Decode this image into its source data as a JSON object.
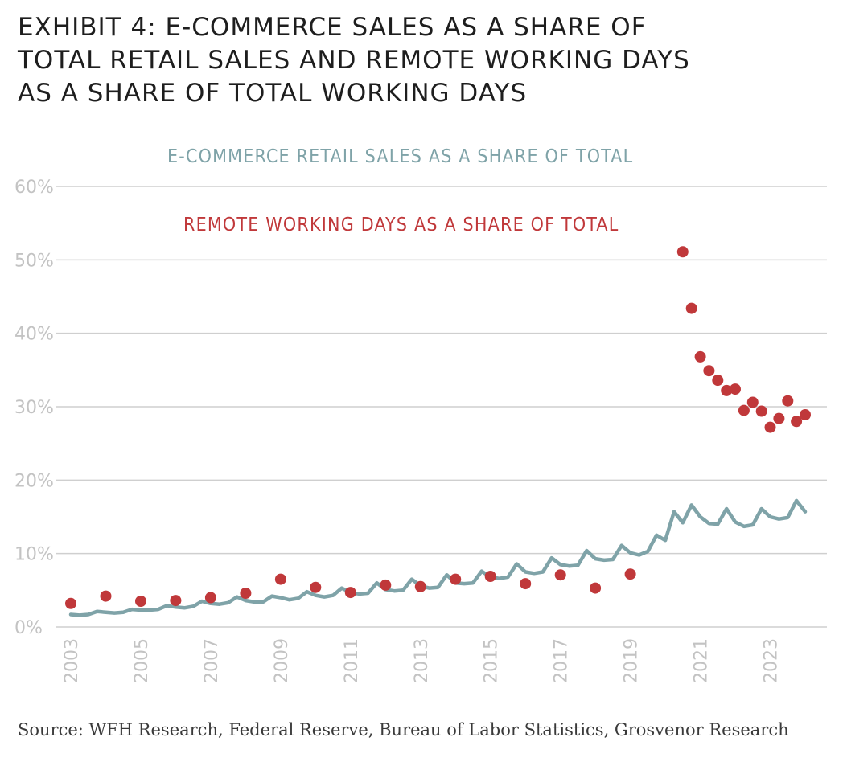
{
  "title_lines": [
    "EXHIBIT 4: E-COMMERCE SALES AS A SHARE OF",
    "TOTAL RETAIL SALES AND REMOTE WORKING DAYS",
    "AS A SHARE OF TOTAL WORKING DAYS"
  ],
  "source": "Source: WFH Research, Federal Reserve, Bureau of Labor Statistics, Grosvenor Research",
  "colors": {
    "ecommerce": "#7fa3a8",
    "remote": "#c0383a",
    "grid": "#cfcfcf",
    "tick": "#c3c3c3"
  },
  "chart_data": {
    "type": "line",
    "ylim": [
      0,
      60
    ],
    "xlim": [
      2003,
      2024.2
    ],
    "y_ticks": [
      0,
      10,
      20,
      30,
      40,
      50,
      60
    ],
    "y_tick_labels": [
      "0%",
      "10%",
      "20%",
      "30%",
      "40%",
      "50%",
      "60%"
    ],
    "x_tick_labels": [
      "2003",
      "2005",
      "2007",
      "2009",
      "2011",
      "2013",
      "2015",
      "2017",
      "2019",
      "2021",
      "2023"
    ],
    "legend": {
      "ecommerce": "E-COMMERCE RETAIL SALES AS A SHARE OF TOTAL",
      "remote": "REMOTE WORKING DAYS AS A SHARE OF TOTAL"
    },
    "series": [
      {
        "name": "E-COMMERCE RETAIL SALES AS A SHARE OF TOTAL",
        "type": "line",
        "x": [
          2003.0,
          2003.25,
          2003.5,
          2003.75,
          2004.0,
          2004.25,
          2004.5,
          2004.75,
          2005.0,
          2005.25,
          2005.5,
          2005.75,
          2006.0,
          2006.25,
          2006.5,
          2006.75,
          2007.0,
          2007.25,
          2007.5,
          2007.75,
          2008.0,
          2008.25,
          2008.5,
          2008.75,
          2009.0,
          2009.25,
          2009.5,
          2009.75,
          2010.0,
          2010.25,
          2010.5,
          2010.75,
          2011.0,
          2011.25,
          2011.5,
          2011.75,
          2012.0,
          2012.25,
          2012.5,
          2012.75,
          2013.0,
          2013.25,
          2013.5,
          2013.75,
          2014.0,
          2014.25,
          2014.5,
          2014.75,
          2015.0,
          2015.25,
          2015.5,
          2015.75,
          2016.0,
          2016.25,
          2016.5,
          2016.75,
          2017.0,
          2017.25,
          2017.5,
          2017.75,
          2018.0,
          2018.25,
          2018.5,
          2018.75,
          2019.0,
          2019.25,
          2019.5,
          2019.75,
          2020.0,
          2020.25,
          2020.5,
          2020.75,
          2021.0,
          2021.25,
          2021.5,
          2021.75,
          2022.0,
          2022.25,
          2022.5,
          2022.75,
          2023.0,
          2023.25,
          2023.5,
          2023.75,
          2024.0
        ],
        "values": [
          1.7,
          1.6,
          1.7,
          2.1,
          2.0,
          1.9,
          2.0,
          2.4,
          2.3,
          2.3,
          2.4,
          2.9,
          2.7,
          2.6,
          2.8,
          3.5,
          3.2,
          3.1,
          3.3,
          4.1,
          3.6,
          3.4,
          3.4,
          4.2,
          4.0,
          3.7,
          3.9,
          4.8,
          4.3,
          4.1,
          4.3,
          5.3,
          4.7,
          4.5,
          4.6,
          6.0,
          5.1,
          4.9,
          5.0,
          6.5,
          5.6,
          5.3,
          5.4,
          7.1,
          6.0,
          5.9,
          6.0,
          7.6,
          6.8,
          6.6,
          6.8,
          8.6,
          7.5,
          7.3,
          7.5,
          9.4,
          8.5,
          8.3,
          8.4,
          10.4,
          9.3,
          9.1,
          9.2,
          11.1,
          10.1,
          9.8,
          10.3,
          12.5,
          11.8,
          15.7,
          14.2,
          16.6,
          15.0,
          14.1,
          14.0,
          16.1,
          14.3,
          13.7,
          13.9,
          16.1,
          15.0,
          14.7,
          14.9,
          17.2,
          15.7
        ]
      },
      {
        "name": "REMOTE WORKING DAYS AS A SHARE OF TOTAL",
        "type": "scatter",
        "x": [
          2003,
          2004,
          2005,
          2006,
          2007,
          2008,
          2009,
          2010,
          2011,
          2012,
          2013,
          2014,
          2015,
          2016,
          2017,
          2018,
          2019,
          2020.5,
          2020.75,
          2021.0,
          2021.25,
          2021.5,
          2021.75,
          2022.0,
          2022.25,
          2022.5,
          2022.75,
          2023.0,
          2023.25,
          2023.5,
          2023.75,
          2024.0
        ],
        "values": [
          3.2,
          4.2,
          3.5,
          3.6,
          4.0,
          4.6,
          6.5,
          5.4,
          4.7,
          5.7,
          5.5,
          6.5,
          6.9,
          5.9,
          7.1,
          5.3,
          7.2,
          51.1,
          43.4,
          36.8,
          34.9,
          33.6,
          32.2,
          32.4,
          29.5,
          30.6,
          29.4,
          27.2,
          28.4,
          30.8,
          28.0,
          28.9
        ]
      }
    ]
  }
}
